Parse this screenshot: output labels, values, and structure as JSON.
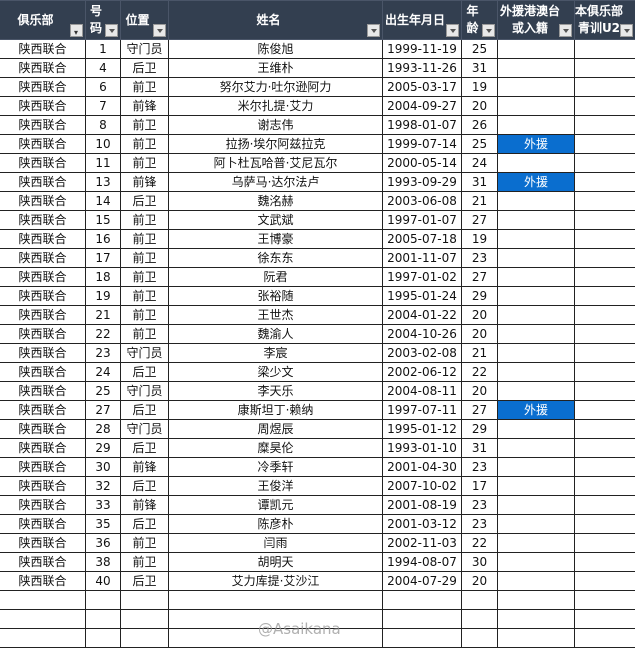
{
  "headers": [
    {
      "label": "俱乐部",
      "filtered": true
    },
    {
      "label": "号码"
    },
    {
      "label": "位置"
    },
    {
      "label": "姓名"
    },
    {
      "label": "出生年月日"
    },
    {
      "label": "年龄"
    },
    {
      "label": "外援港澳台\n或入籍",
      "line1": "外援港澳台",
      "line2": "或入籍"
    },
    {
      "label": "本俱乐部\n青训U2",
      "line1": "本俱乐部",
      "line2": "青训U2"
    }
  ],
  "accent_color": "#0a6ecf",
  "header_color": "#333f50",
  "rows": [
    [
      "陕西联合",
      "1",
      "守门员",
      "陈俊旭",
      "1999-11-19",
      "25",
      "",
      ""
    ],
    [
      "陕西联合",
      "4",
      "后卫",
      "王维朴",
      "1993-11-26",
      "31",
      "",
      ""
    ],
    [
      "陕西联合",
      "6",
      "前卫",
      "努尔艾力·吐尔逊阿力",
      "2005-03-17",
      "19",
      "",
      ""
    ],
    [
      "陕西联合",
      "7",
      "前锋",
      "米尔扎提·艾力",
      "2004-09-27",
      "20",
      "",
      ""
    ],
    [
      "陕西联合",
      "8",
      "前卫",
      "谢志伟",
      "1998-01-07",
      "26",
      "",
      ""
    ],
    [
      "陕西联合",
      "10",
      "前卫",
      "拉扬·埃尔阿兹拉克",
      "1999-07-14",
      "25",
      "外援",
      ""
    ],
    [
      "陕西联合",
      "11",
      "前卫",
      "阿卜杜瓦哈普·艾尼瓦尔",
      "2000-05-14",
      "24",
      "",
      ""
    ],
    [
      "陕西联合",
      "13",
      "前锋",
      "乌萨马·达尔法卢",
      "1993-09-29",
      "31",
      "外援",
      ""
    ],
    [
      "陕西联合",
      "14",
      "后卫",
      "魏洺赫",
      "2003-06-08",
      "21",
      "",
      ""
    ],
    [
      "陕西联合",
      "15",
      "前卫",
      "文武斌",
      "1997-01-07",
      "27",
      "",
      ""
    ],
    [
      "陕西联合",
      "16",
      "前卫",
      "王博豪",
      "2005-07-18",
      "19",
      "",
      ""
    ],
    [
      "陕西联合",
      "17",
      "前卫",
      "徐东东",
      "2001-11-07",
      "23",
      "",
      ""
    ],
    [
      "陕西联合",
      "18",
      "前卫",
      "阮君",
      "1997-01-02",
      "27",
      "",
      ""
    ],
    [
      "陕西联合",
      "19",
      "前卫",
      "张裕随",
      "1995-01-24",
      "29",
      "",
      ""
    ],
    [
      "陕西联合",
      "21",
      "前卫",
      "王世杰",
      "2004-01-22",
      "20",
      "",
      ""
    ],
    [
      "陕西联合",
      "22",
      "前卫",
      "魏渝人",
      "2004-10-26",
      "20",
      "",
      ""
    ],
    [
      "陕西联合",
      "23",
      "守门员",
      "李宸",
      "2003-02-08",
      "21",
      "",
      ""
    ],
    [
      "陕西联合",
      "24",
      "后卫",
      "梁少文",
      "2002-06-12",
      "22",
      "",
      ""
    ],
    [
      "陕西联合",
      "25",
      "守门员",
      "李天乐",
      "2004-08-11",
      "20",
      "",
      ""
    ],
    [
      "陕西联合",
      "27",
      "后卫",
      "康斯坦丁·赖纳",
      "1997-07-11",
      "27",
      "外援",
      ""
    ],
    [
      "陕西联合",
      "28",
      "守门员",
      "周煜辰",
      "1995-01-12",
      "29",
      "",
      ""
    ],
    [
      "陕西联合",
      "29",
      "后卫",
      "糜昊伦",
      "1993-01-10",
      "31",
      "",
      ""
    ],
    [
      "陕西联合",
      "30",
      "前锋",
      "冷季轩",
      "2001-04-30",
      "23",
      "",
      ""
    ],
    [
      "陕西联合",
      "32",
      "后卫",
      "王俊洋",
      "2007-10-02",
      "17",
      "",
      ""
    ],
    [
      "陕西联合",
      "33",
      "前锋",
      "谭凯元",
      "2001-08-19",
      "23",
      "",
      ""
    ],
    [
      "陕西联合",
      "35",
      "后卫",
      "陈彦朴",
      "2001-03-12",
      "23",
      "",
      ""
    ],
    [
      "陕西联合",
      "36",
      "前卫",
      "闫雨",
      "2002-11-03",
      "22",
      "",
      ""
    ],
    [
      "陕西联合",
      "38",
      "前卫",
      "胡明天",
      "1994-08-07",
      "30",
      "",
      ""
    ],
    [
      "陕西联合",
      "40",
      "后卫",
      "艾力库提·艾沙江",
      "2004-07-29",
      "20",
      "",
      ""
    ]
  ],
  "blank_rows": 3,
  "watermark": "@Asaikana"
}
